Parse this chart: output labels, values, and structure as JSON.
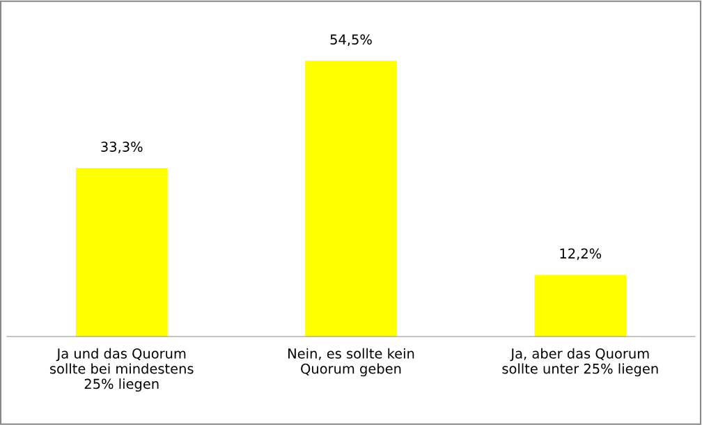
{
  "chart_data": {
    "type": "bar",
    "categories": [
      "Ja und das Quorum\nsollte bei mindestens\n25% liegen",
      "Nein, es sollte kein\nQuorum geben",
      "Ja, aber das Quorum\nsollte unter 25% liegen"
    ],
    "values": [
      33.3,
      54.5,
      12.2
    ],
    "value_labels": [
      "33,3%",
      "54,5%",
      "12,2%"
    ],
    "color": "#ffff00"
  }
}
